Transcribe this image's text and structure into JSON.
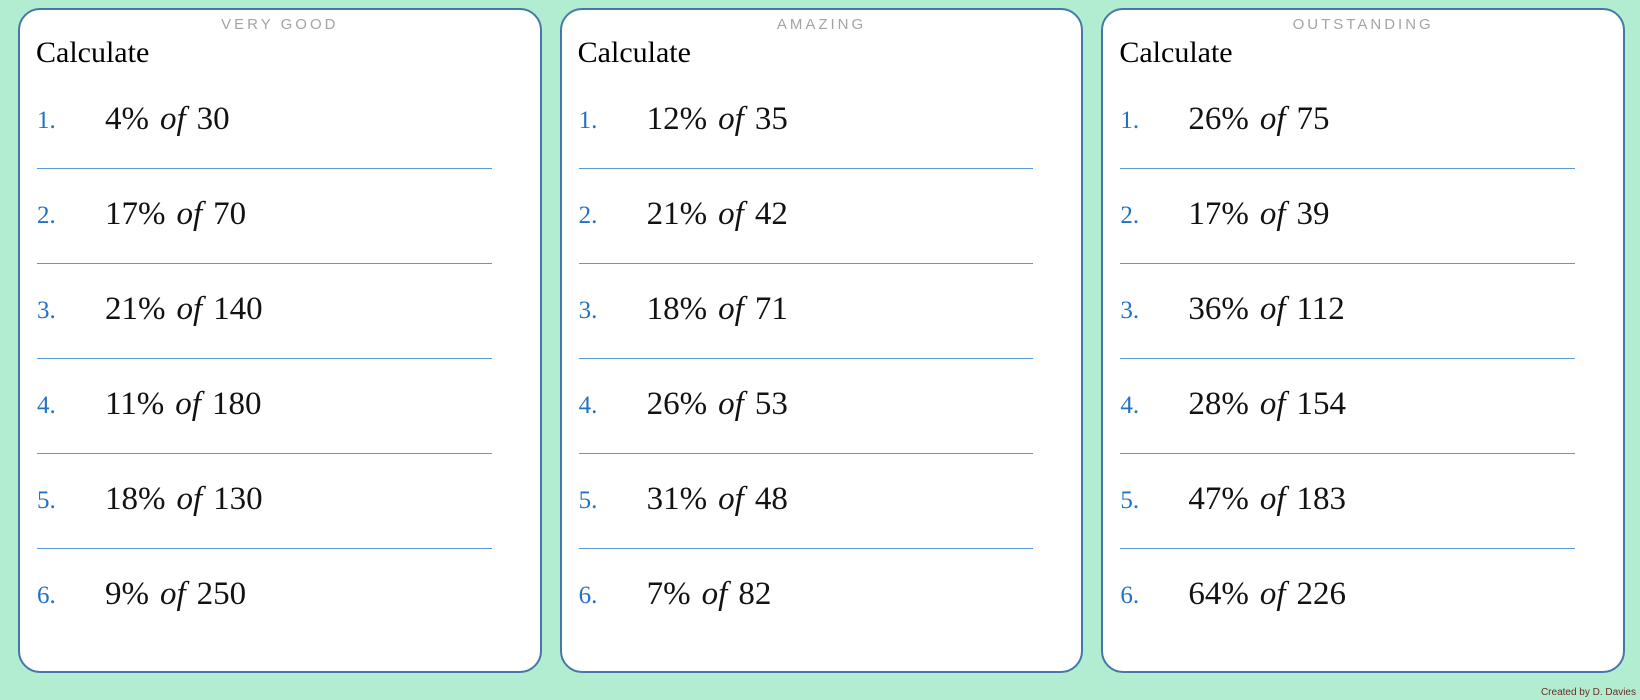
{
  "credit": "Created by D. Davies",
  "colors": {
    "background_mint": "#b2edd2",
    "panel_border_blue": "#4478a8",
    "divider_blue": "#5b9bd5",
    "number_blue": "#2272c4",
    "title_gray": "#a4a4a4",
    "credit_maroon": "#6e2a22"
  },
  "panels": [
    {
      "title": "VERY GOOD",
      "heading": "Calculate",
      "problems": [
        {
          "label": "1.",
          "percent": "4%",
          "of_word": "of",
          "base": "30"
        },
        {
          "label": "2.",
          "percent": "17%",
          "of_word": "of",
          "base": "70"
        },
        {
          "label": "3.",
          "percent": "21%",
          "of_word": "of",
          "base": "140"
        },
        {
          "label": "4.",
          "percent": "11%",
          "of_word": "of",
          "base": "180"
        },
        {
          "label": "5.",
          "percent": "18%",
          "of_word": "of",
          "base": "130"
        },
        {
          "label": "6.",
          "percent": "9%",
          "of_word": "of",
          "base": "250"
        }
      ]
    },
    {
      "title": "AMAZING",
      "heading": "Calculate",
      "problems": [
        {
          "label": "1.",
          "percent": "12%",
          "of_word": "of",
          "base": "35"
        },
        {
          "label": "2.",
          "percent": "21%",
          "of_word": "of",
          "base": "42"
        },
        {
          "label": "3.",
          "percent": "18%",
          "of_word": "of",
          "base": "71"
        },
        {
          "label": "4.",
          "percent": "26%",
          "of_word": "of",
          "base": "53"
        },
        {
          "label": "5.",
          "percent": "31%",
          "of_word": "of",
          "base": "48"
        },
        {
          "label": "6.",
          "percent": "7%",
          "of_word": "of",
          "base": "82"
        }
      ]
    },
    {
      "title": "OUTSTANDING",
      "heading": "Calculate",
      "problems": [
        {
          "label": "1.",
          "percent": "26%",
          "of_word": "of",
          "base": "75"
        },
        {
          "label": "2.",
          "percent": "17%",
          "of_word": "of",
          "base": "39"
        },
        {
          "label": "3.",
          "percent": "36%",
          "of_word": "of",
          "base": "112"
        },
        {
          "label": "4.",
          "percent": "28%",
          "of_word": "of",
          "base": "154"
        },
        {
          "label": "5.",
          "percent": "47%",
          "of_word": "of",
          "base": "183"
        },
        {
          "label": "6.",
          "percent": "64%",
          "of_word": "of",
          "base": "226"
        }
      ]
    }
  ]
}
